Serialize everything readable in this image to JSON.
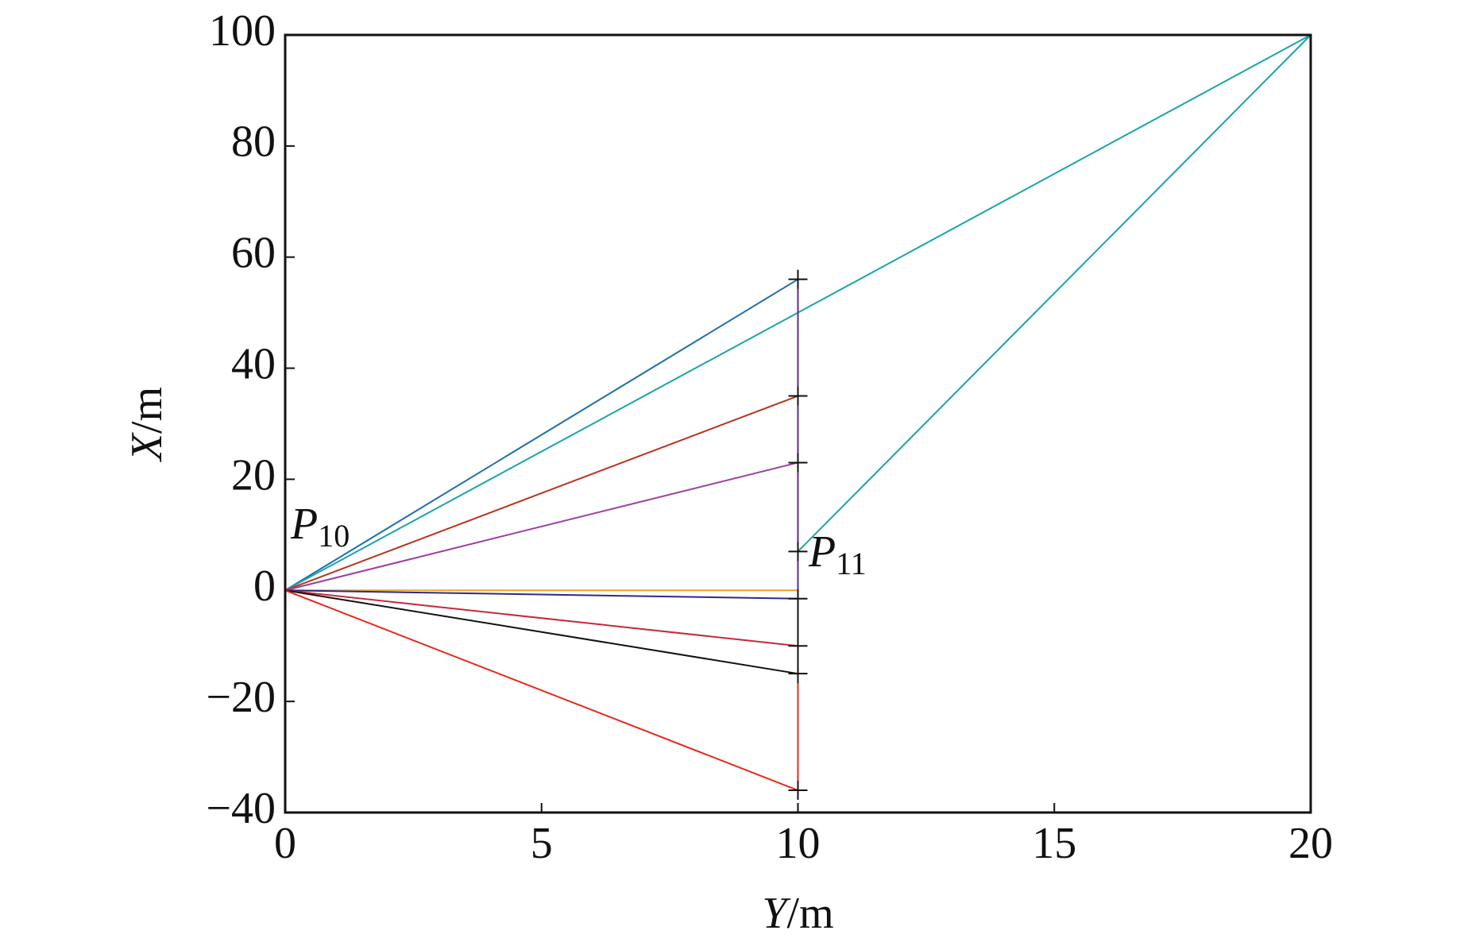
{
  "chart_data": {
    "type": "line",
    "x_label": [
      "Y",
      "/m"
    ],
    "y_label": [
      "X",
      "/m"
    ],
    "xlim": [
      0,
      20
    ],
    "ylim": [
      -40,
      100
    ],
    "xticks": [
      0,
      5,
      10,
      15,
      20
    ],
    "yticks": [
      {
        "value": -40,
        "label": "−40"
      },
      {
        "value": -20,
        "label": "−20"
      },
      0,
      20,
      40,
      60,
      80,
      100
    ],
    "grid": false,
    "series": [
      {
        "color": "#1f6fa8",
        "x": [
          0,
          10
        ],
        "values": [
          0,
          56
        ]
      },
      {
        "color": "#1aa3ab",
        "x": [
          0,
          20,
          10
        ],
        "values": [
          0,
          100,
          7
        ]
      },
      {
        "color": "#b8341b",
        "x": [
          0,
          10
        ],
        "values": [
          0,
          35
        ]
      },
      {
        "color": "#9a3fa0",
        "x": [
          0,
          10
        ],
        "values": [
          0,
          23
        ]
      },
      {
        "color": "#f0a030",
        "x": [
          0,
          10
        ],
        "values": [
          0,
          0
        ]
      },
      {
        "color": "#2c2a8a",
        "x": [
          0,
          10
        ],
        "values": [
          0,
          -1.5
        ]
      },
      {
        "color": "#c8283c",
        "x": [
          0,
          10
        ],
        "values": [
          0,
          -10
        ]
      },
      {
        "color": "#111111",
        "x": [
          0,
          10
        ],
        "values": [
          0,
          -15
        ]
      },
      {
        "color": "#e8291c",
        "x": [
          0,
          10
        ],
        "values": [
          0,
          -36
        ]
      },
      {
        "color": "#5b2c83",
        "x": [
          10,
          10
        ],
        "values": [
          56,
          0
        ]
      },
      {
        "color": "#111111",
        "x": [
          10,
          10
        ],
        "values": [
          0,
          -15
        ]
      },
      {
        "color": "#e8291c",
        "x": [
          10,
          10
        ],
        "values": [
          -15,
          -36
        ]
      },
      {
        "color": "#111111",
        "marker": "+",
        "x": [
          10,
          10,
          10,
          10,
          10,
          10,
          10,
          10
        ],
        "values": [
          56,
          35,
          23,
          7,
          -1.5,
          -10,
          -15,
          -36
        ]
      }
    ],
    "annotations": [
      {
        "text": "P",
        "subscript": "10"
      },
      {
        "text": "P",
        "subscript": "11"
      }
    ]
  }
}
